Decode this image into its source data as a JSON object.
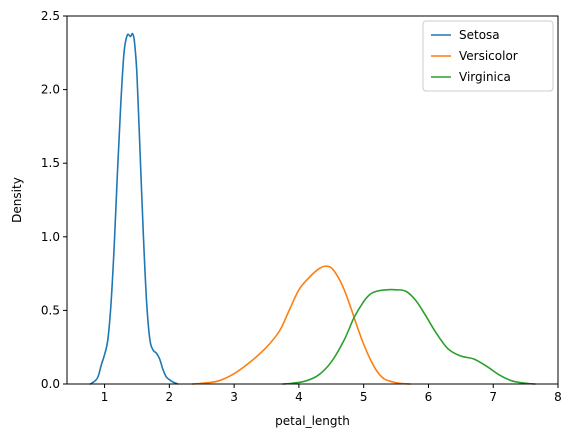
{
  "chart_data": {
    "type": "line",
    "title": "",
    "xlabel": "petal_length",
    "ylabel": "Density",
    "xlim": [
      0.42,
      8
    ],
    "ylim": [
      0,
      2.5
    ],
    "xticks": [
      1,
      2,
      3,
      4,
      5,
      6,
      7,
      8
    ],
    "yticks": [
      0.0,
      0.5,
      1.0,
      1.5,
      2.0,
      2.5
    ],
    "grid": false,
    "legend_position": "top-right",
    "series": [
      {
        "name": "Setosa",
        "color": "#1f77b4",
        "x": [
          0.78,
          0.85,
          0.9,
          0.95,
          1.0,
          1.05,
          1.1,
          1.15,
          1.2,
          1.25,
          1.3,
          1.35,
          1.4,
          1.43,
          1.46,
          1.5,
          1.55,
          1.6,
          1.65,
          1.7,
          1.75,
          1.8,
          1.85,
          1.9,
          1.95,
          2.0,
          2.05,
          2.1,
          2.13
        ],
        "y": [
          0.0,
          0.02,
          0.05,
          0.13,
          0.2,
          0.3,
          0.55,
          0.95,
          1.45,
          1.9,
          2.25,
          2.37,
          2.36,
          2.38,
          2.33,
          2.1,
          1.55,
          1.0,
          0.55,
          0.3,
          0.23,
          0.21,
          0.17,
          0.1,
          0.05,
          0.03,
          0.015,
          0.005,
          0.0
        ]
      },
      {
        "name": "Versicolor",
        "color": "#ff7f0e",
        "x": [
          2.35,
          2.5,
          2.75,
          3.0,
          3.25,
          3.5,
          3.7,
          3.85,
          4.0,
          4.15,
          4.3,
          4.4,
          4.5,
          4.6,
          4.7,
          4.8,
          4.9,
          5.0,
          5.1,
          5.2,
          5.3,
          5.4,
          5.55,
          5.72
        ],
        "y": [
          0.0,
          0.005,
          0.02,
          0.07,
          0.15,
          0.25,
          0.36,
          0.5,
          0.64,
          0.72,
          0.78,
          0.8,
          0.79,
          0.73,
          0.64,
          0.52,
          0.39,
          0.27,
          0.17,
          0.09,
          0.04,
          0.02,
          0.005,
          0.0
        ]
      },
      {
        "name": "Virginica",
        "color": "#2ca02c",
        "x": [
          3.75,
          3.9,
          4.1,
          4.3,
          4.5,
          4.7,
          4.85,
          5.0,
          5.1,
          5.2,
          5.35,
          5.5,
          5.65,
          5.8,
          5.95,
          6.1,
          6.3,
          6.5,
          6.7,
          6.9,
          7.1,
          7.3,
          7.5,
          7.65
        ],
        "y": [
          0.0,
          0.005,
          0.02,
          0.06,
          0.15,
          0.3,
          0.45,
          0.56,
          0.61,
          0.63,
          0.64,
          0.64,
          0.63,
          0.57,
          0.47,
          0.36,
          0.24,
          0.19,
          0.17,
          0.12,
          0.06,
          0.02,
          0.005,
          0.0
        ]
      }
    ]
  }
}
